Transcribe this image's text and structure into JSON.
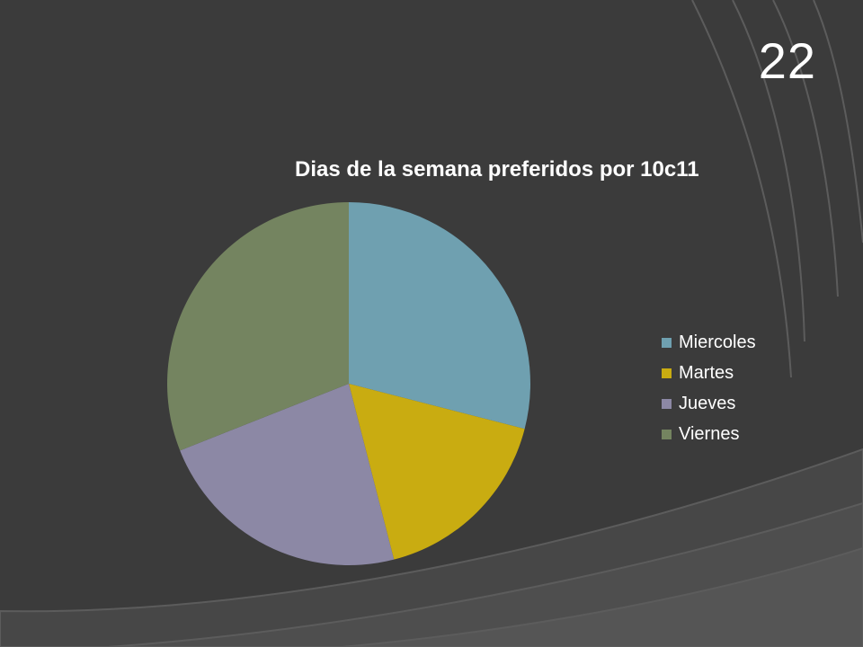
{
  "slide": {
    "number": "22"
  },
  "colors": {
    "background": "#3b3b3b",
    "arc_fill": "#4a4a4a",
    "arc_stroke": "#5c5c5c",
    "text": "#ffffff"
  },
  "chart_data": {
    "type": "pie",
    "title": "Dias de la semana preferidos por 10c11",
    "categories": [
      "Miercoles",
      "Martes",
      "Jueves",
      "Viernes"
    ],
    "values": [
      29,
      17,
      23,
      31
    ],
    "colors": [
      "#6fa0b0",
      "#c9ac11",
      "#8c88a5",
      "#748460"
    ],
    "start_angle_deg": 0,
    "direction": "clockwise",
    "legend_position": "right"
  }
}
